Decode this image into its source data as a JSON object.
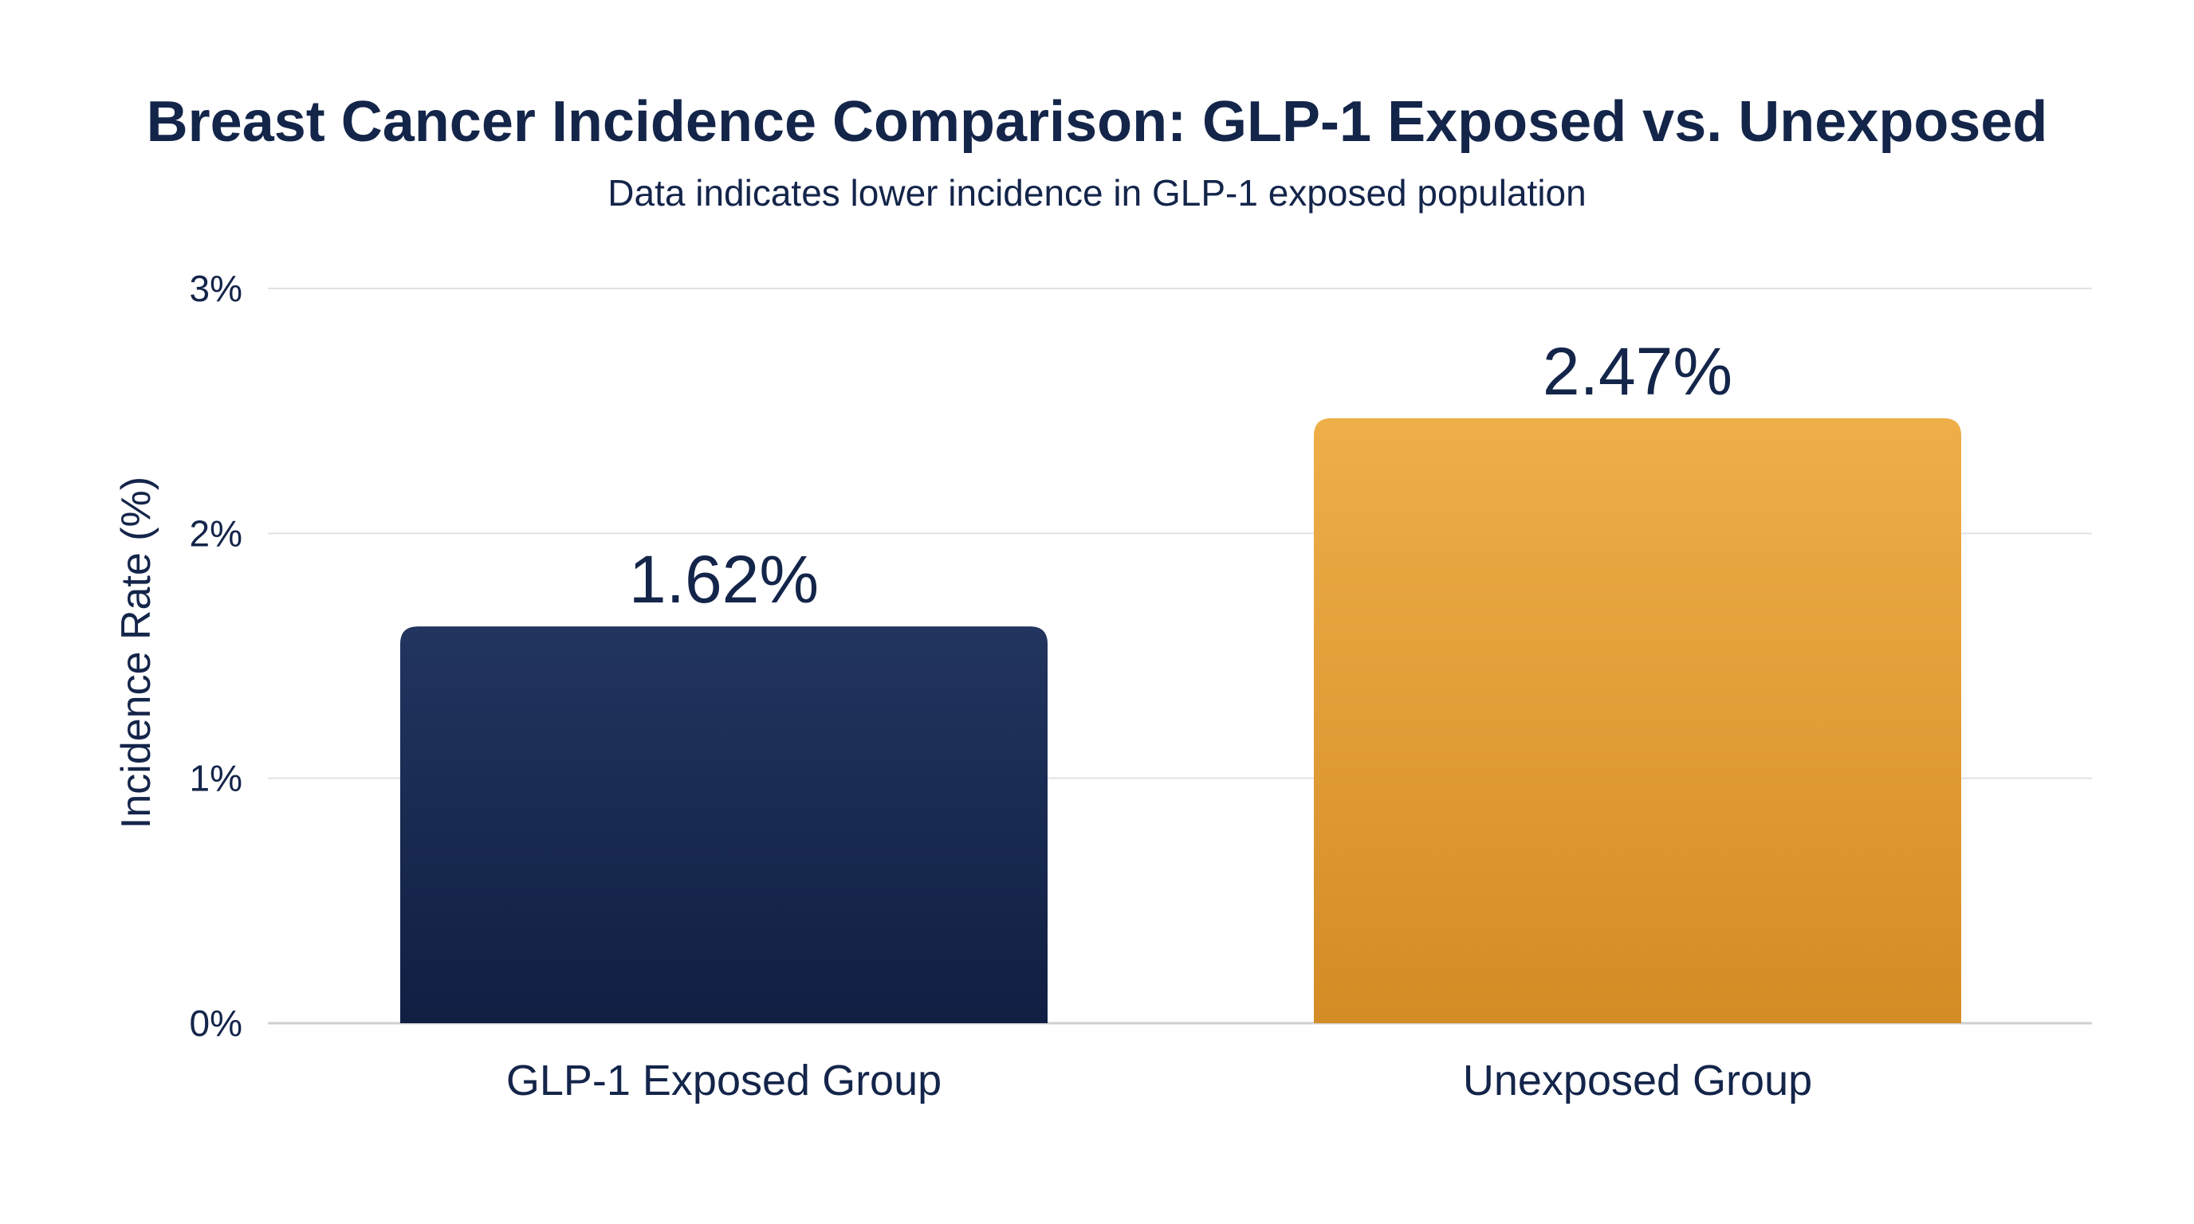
{
  "chart_data": {
    "type": "bar",
    "title": "Breast Cancer Incidence Comparison: GLP-1 Exposed vs. Unexposed",
    "subtitle": "Data indicates lower incidence in GLP-1 exposed population",
    "ylabel": "Incidence Rate (%)",
    "xlabel": "",
    "ylim": [
      0,
      3
    ],
    "yticks": [
      {
        "value": 0,
        "label": "0%"
      },
      {
        "value": 1,
        "label": "1%"
      },
      {
        "value": 2,
        "label": "2%"
      },
      {
        "value": 3,
        "label": "3%"
      }
    ],
    "categories": [
      "GLP-1 Exposed Group",
      "Unexposed Group"
    ],
    "values": [
      1.62,
      2.47
    ],
    "value_labels": [
      "1.62%",
      "2.47%"
    ],
    "grid": true,
    "legend": "none"
  },
  "colors": {
    "text": "#14254a",
    "grid": "#e2e2e2",
    "axis": "#cfcfcf",
    "bar_1_top": "#22355f",
    "bar_1_bottom": "#101f42",
    "bar_2_top": "#eeae48",
    "bar_2_bottom": "#d48c25"
  }
}
